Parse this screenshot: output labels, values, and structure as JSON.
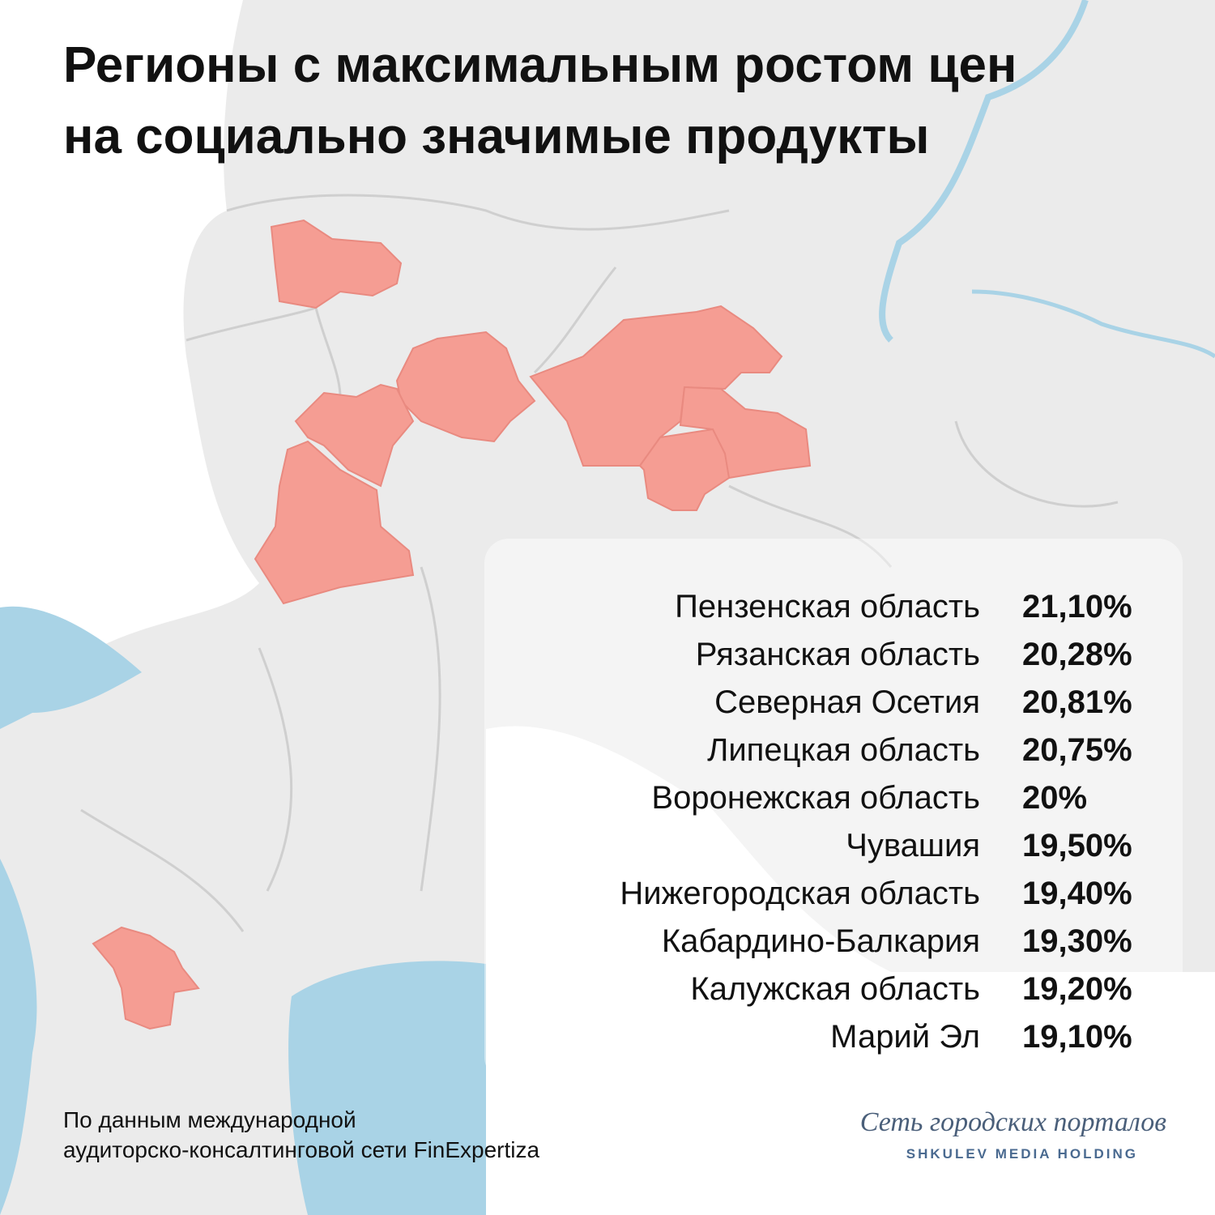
{
  "header": {
    "title_lines": [
      "Регионы с максимальным ростом цен",
      "на социально значимые продукты"
    ]
  },
  "table": {
    "rows": [
      [
        "Пензенская область",
        "21,10%"
      ],
      [
        "Рязанская область",
        "20,28%"
      ],
      [
        "Северная Осетия",
        "20,81%"
      ],
      [
        "Липецкая область",
        "20,75%"
      ],
      [
        "Воронежская область",
        "20%"
      ],
      [
        "Чувашия",
        "19,50%"
      ],
      [
        "Нижегородская область",
        "19,40%"
      ],
      [
        "Кабардино-Балкария",
        "19,30%"
      ],
      [
        "Калужская область",
        "19,20%"
      ],
      [
        "Марий Эл",
        "19,10%"
      ]
    ]
  },
  "footer": {
    "source_lines": [
      "По данным международной",
      "аудиторско-консалтинговой сети FinExpertiza"
    ],
    "logo": "Сеть городских порталов",
    "logo_sub": "SHKULEV MEDIA HOLDING"
  }
}
